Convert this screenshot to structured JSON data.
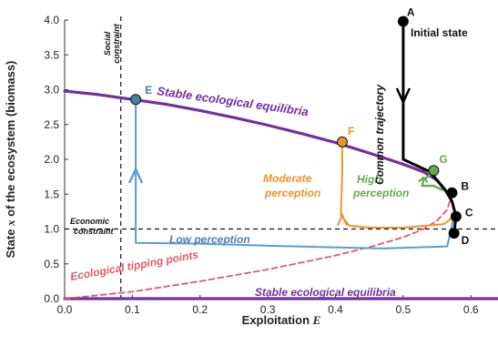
{
  "chart_data": {
    "type": "line",
    "xlabel_prefix": "Exploitation ",
    "xlabel_var": "E",
    "ylabel_prefix": "State ",
    "ylabel_var": "x",
    "ylabel_suffix": " of the ecosystem (biomass)",
    "xlim": [
      0.0,
      0.64
    ],
    "ylim": [
      0.0,
      4.0
    ],
    "x_ticks": [
      "0.0",
      "0.1",
      "0.2",
      "0.3",
      "0.4",
      "0.5",
      "0.6"
    ],
    "y_ticks": [
      "0.0",
      "0.5",
      "1.0",
      "1.5",
      "2.0",
      "2.5",
      "3.0",
      "3.5",
      "4.0"
    ],
    "grid": false,
    "constraints": {
      "social": {
        "x": 0.083,
        "label_line1": "Social",
        "label_line2": "constraint"
      },
      "economic": {
        "y": 1.0,
        "label_line1": "Economic",
        "label_line2": "constraint"
      }
    },
    "series": [
      {
        "name": "Stable ecological equilibria",
        "color": "#7030a0",
        "x": [
          0.0,
          0.05,
          0.1,
          0.15,
          0.2,
          0.25,
          0.3,
          0.35,
          0.4,
          0.45,
          0.5,
          0.53,
          0.55,
          0.562
        ],
        "y": [
          2.98,
          2.93,
          2.86,
          2.79,
          2.7,
          2.6,
          2.49,
          2.37,
          2.24,
          2.09,
          1.93,
          1.82,
          1.7,
          1.56
        ]
      },
      {
        "name": "Stable ecological equilibria",
        "color": "#7030a0",
        "x": [
          0.0,
          0.64
        ],
        "y": [
          0.0,
          0.0
        ]
      },
      {
        "name": "Ecological tipping points",
        "color": "#e05a6a",
        "x": [
          0.0,
          0.1,
          0.2,
          0.3,
          0.4,
          0.45,
          0.5,
          0.53,
          0.55,
          0.565,
          0.572
        ],
        "y": [
          0.0,
          0.1,
          0.25,
          0.42,
          0.62,
          0.74,
          0.88,
          1.0,
          1.12,
          1.28,
          1.5
        ]
      },
      {
        "name": "Common trajectory",
        "color": "#000000",
        "x": [
          0.5,
          0.5,
          0.54,
          0.562,
          0.572,
          0.578,
          0.575
        ],
        "y": [
          4.0,
          2.0,
          1.82,
          1.56,
          1.4,
          1.18,
          0.94
        ]
      },
      {
        "name": "Low perception",
        "color": "#5b9bd5",
        "x": [
          0.575,
          0.565,
          0.47,
          0.3,
          0.2,
          0.105,
          0.105,
          0.105
        ],
        "y": [
          1.18,
          0.75,
          0.72,
          0.76,
          0.79,
          0.8,
          1.8,
          2.86
        ]
      },
      {
        "name": "Moderate perception",
        "color": "#f0922b",
        "x": [
          0.575,
          0.56,
          0.5,
          0.45,
          0.42,
          0.408,
          0.41,
          0.41
        ],
        "y": [
          1.18,
          1.07,
          1.02,
          1.02,
          1.05,
          1.2,
          1.8,
          2.25
        ]
      },
      {
        "name": "High perception",
        "color": "#6aa84f",
        "x": [
          0.558,
          0.545,
          0.528,
          0.53,
          0.545
        ],
        "y": [
          1.56,
          1.62,
          1.62,
          1.71,
          1.81
        ]
      }
    ],
    "points": [
      {
        "label": "A",
        "x": 0.5,
        "y": 3.98,
        "color": "#000000"
      },
      {
        "label": "B",
        "x": 0.572,
        "y": 1.52,
        "color": "#000000"
      },
      {
        "label": "C",
        "x": 0.578,
        "y": 1.18,
        "color": "#000000"
      },
      {
        "label": "D",
        "x": 0.575,
        "y": 0.94,
        "color": "#000000"
      },
      {
        "label": "E",
        "x": 0.105,
        "y": 2.86,
        "color": "#4a7fa8"
      },
      {
        "label": "F",
        "x": 0.41,
        "y": 2.25,
        "color": "#f0922b"
      },
      {
        "label": "G",
        "x": 0.545,
        "y": 1.84,
        "color": "#6aa84f"
      }
    ],
    "annotations": {
      "initial_state": "Initial state",
      "common_trajectory": "Common trajectory",
      "stable_top": "Stable ecological equilibria",
      "stable_bottom": "Stable ecological equilibria",
      "tipping": "Ecological tipping points",
      "low": "Low perception",
      "moderate_line1": "Moderate",
      "moderate_line2": "perception",
      "high_line1": "High",
      "high_line2": "perception"
    }
  }
}
